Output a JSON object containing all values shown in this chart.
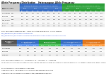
{
  "title": "Allele Frequency Distribution    Heterozygous Allele Frequency",
  "bg_color": "#ffffff",
  "top_table": {
    "left_header_color": "#dddddd",
    "blue_color": "#3a6fc4",
    "blue_light": "#4d80cc",
    "green_color": "#2d9e3a",
    "green_light": "#3aaa48",
    "blue_title": "Benign/Pathogenic Allele Frequency (1000G)",
    "green_title": "Benign/Pathogenic Allele Frequency (ExAC)",
    "left_cols": [
      "Consequence\nClass",
      "SNP"
    ],
    "sub_cols": [
      "2010",
      "2011",
      "2012",
      "2013"
    ],
    "sub_sub_cols_blue": [
      "Benign",
      "Pathogenic",
      "Ratio",
      "p-value"
    ],
    "sub_sub_cols_green": [
      "Benign",
      "Pathogenic",
      "Ratio",
      "p-value"
    ],
    "rows": [
      [
        "synonymous",
        "0.012",
        "0.01",
        "0.02",
        "0.03",
        "0.04",
        "0.01",
        "0.02",
        "0.03",
        "0.04"
      ],
      [
        "missense",
        "0.023",
        "0.11",
        "0.12",
        "0.13",
        "0.14",
        "0.11",
        "0.12",
        "0.13",
        "0.14"
      ],
      [
        "stop_gained",
        "0.034",
        "0.21",
        "0.22",
        "0.23",
        "0.24",
        "0.21",
        "0.22",
        "0.23",
        "0.24"
      ],
      [
        "frameshift",
        "0.045",
        "0.31",
        "0.32",
        "0.33",
        "0.34",
        "0.31",
        "0.32",
        "0.33",
        "0.34"
      ],
      [
        "splice",
        "0.056",
        "0.41",
        "0.42",
        "0.43",
        "0.44",
        "0.41",
        "0.42",
        "0.43",
        "0.44"
      ]
    ]
  },
  "note1": "Note: Consequence categories SNP = Single Nucleotide Polymorphism   Source: resource",
  "note2": "http://example.org/allele-frequency-distribution",
  "note3": "http://example.org/allele-frequency-distribution-heterozygous-allele-frequency-combined-results",
  "bottom_table": {
    "blue_color": "#3a6fc4",
    "green_color": "#2d9e3a",
    "orange_color": "#e07820",
    "group1_title": "Gene Heterozygosity\nDistribution",
    "group2_title": "Benign/Pathogenic\nHeterozygous Dist.",
    "group3_title": "Consensus Heterozygous\nDist.",
    "group4_title": "Allele Heterozygosity\nDistribution",
    "sub_cols": [
      "2010",
      "2011",
      "2012"
    ],
    "left_col_label": "Consequence\nMutation\nClass",
    "rows": [
      [
        "synonymous",
        "0.01",
        "0.02",
        "0.03",
        "0.11",
        "0.12",
        "0.13",
        "0.21",
        "0.22",
        "0.23",
        "0.31",
        "0.32",
        "0.33"
      ],
      [
        "missense",
        "0.41",
        "0.42",
        "0.43",
        "0.51",
        "0.52",
        "0.53",
        "0.61",
        "0.62",
        "0.63",
        "0.71",
        "0.72",
        "0.73"
      ],
      [
        "combined",
        "0.81",
        "0.82",
        "0.83",
        "0.91",
        "0.92",
        "0.93",
        "0.71",
        "0.72",
        "0.73",
        "0.61",
        "0.62",
        "0.63"
      ]
    ]
  },
  "bottom_note": "Note: Consequence category 'S' = Synonymous, 'M' = Missense, 'C' = Combined",
  "para_text": "The distribution of the allele among the heterozygous group and HPMD haplotype associated is broadly distinguished into four categories based on the genetic contribution and level of heterozygosity in each variant. Consequence classification and distinction of heterozygous is determined upon the observation of allele-level in each group. Determination of the heterozygous proportion of SNP values reflect as:",
  "para_bullets": [
    "Gene Heterozygous: Allele Frequency for Each Gene",
    "Allele Heterozygous: Allele Frequency for 4 Different Allele Genotype Combination",
    "Allele Heterozygous Combined Allele Frequency http://www.example.org/alleles"
  ]
}
